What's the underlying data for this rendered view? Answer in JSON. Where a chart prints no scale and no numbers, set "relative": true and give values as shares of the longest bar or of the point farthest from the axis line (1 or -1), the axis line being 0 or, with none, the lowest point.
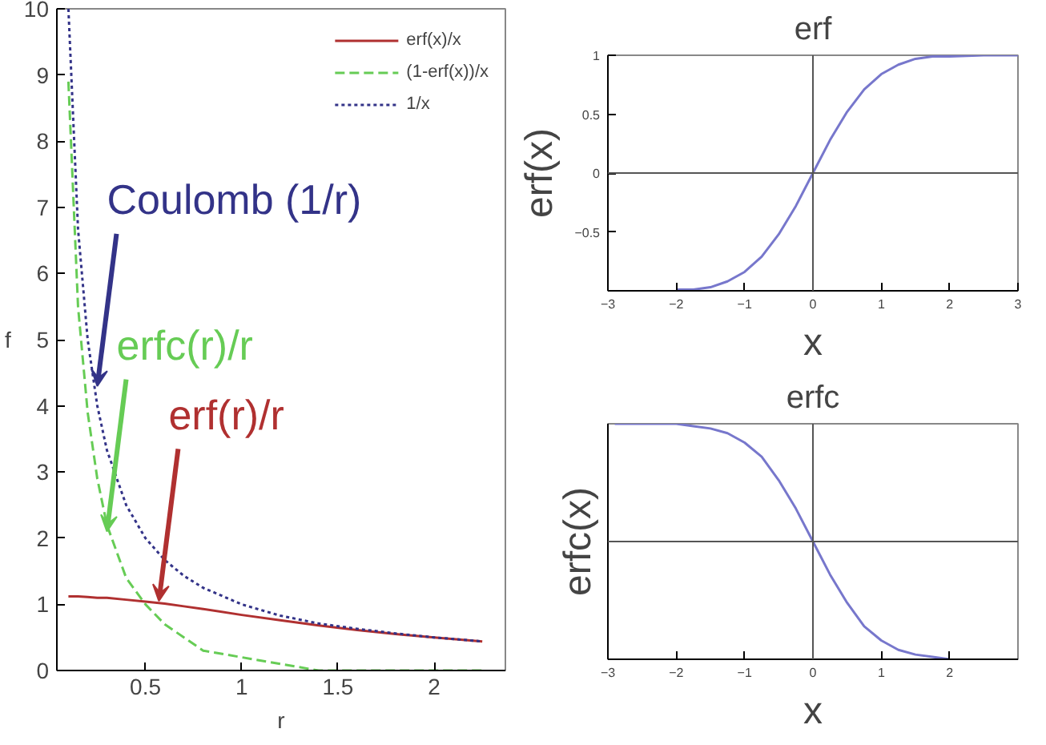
{
  "chart_data": [
    {
      "type": "line",
      "xlabel": "r",
      "ylabel": "f",
      "xlim": [
        0.04,
        2.37
      ],
      "ylim": [
        0,
        10
      ],
      "xticks": [
        0.5,
        1,
        1.5,
        2
      ],
      "yticks": [
        0,
        1,
        2,
        3,
        4,
        5,
        6,
        7,
        8,
        9,
        10
      ],
      "grid": false,
      "legend": "top right",
      "x": [
        0.1,
        0.15,
        0.2,
        0.25,
        0.3,
        0.4,
        0.5,
        0.6,
        0.7,
        0.8,
        1.0,
        1.2,
        1.4,
        1.6,
        1.8,
        2.0,
        2.25
      ],
      "series": [
        {
          "name": "erf(x)/x",
          "color": "#b03030",
          "line_style": "solid",
          "values": [
            1.12,
            1.12,
            1.11,
            1.1,
            1.1,
            1.07,
            1.04,
            1.01,
            0.97,
            0.93,
            0.84,
            0.76,
            0.68,
            0.61,
            0.55,
            0.5,
            0.44
          ]
        },
        {
          "name": "(1-erf(x))/x",
          "color": "#66cc55",
          "line_style": "dashed",
          "values": [
            8.9,
            5.5,
            3.9,
            2.9,
            2.2,
            1.4,
            1.0,
            0.7,
            0.5,
            0.3,
            0.2,
            0.1,
            0.0,
            0.0,
            0.0,
            0.0,
            0.0
          ]
        },
        {
          "name": "1/x",
          "color": "#333388",
          "line_style": "dotted",
          "values": [
            10,
            6.67,
            5,
            4,
            3.33,
            2.5,
            2,
            1.67,
            1.43,
            1.25,
            1,
            0.83,
            0.71,
            0.63,
            0.56,
            0.5,
            0.44
          ]
        }
      ],
      "annotations": [
        {
          "text": "Coulomb (1/r)",
          "x": 0.25,
          "y": 4.3
        },
        {
          "text": "erfc(r)/r",
          "x": 0.3,
          "y": 2.1
        },
        {
          "text": "erf(r)/r",
          "x": 0.57,
          "y": 1.05
        }
      ]
    },
    {
      "type": "line",
      "title": "erf",
      "xlabel": "x",
      "ylabel": "erf(x)",
      "xlim": [
        -3,
        3
      ],
      "ylim": [
        -1,
        1
      ],
      "xticks": [
        -3,
        -2,
        -1,
        0,
        1,
        2,
        3
      ],
      "yticks": [
        -0.5,
        0,
        0.5,
        1
      ],
      "grid": false,
      "x": [
        -2,
        -1.75,
        -1.5,
        -1.25,
        -1,
        -0.75,
        -0.5,
        -0.25,
        0,
        0.25,
        0.5,
        0.75,
        1,
        1.25,
        1.5,
        1.75,
        2,
        2.5,
        3
      ],
      "series": [
        {
          "color": "#7777cc",
          "line_style": "solid",
          "values": [
            -0.99,
            -0.99,
            -0.97,
            -0.92,
            -0.84,
            -0.71,
            -0.52,
            -0.28,
            0,
            0.28,
            0.52,
            0.71,
            0.84,
            0.92,
            0.97,
            0.99,
            0.99,
            1,
            1
          ]
        }
      ],
      "ref_lines": [
        {
          "axis": "x",
          "value": 0,
          "color": "#555555"
        },
        {
          "axis": "y",
          "value": 0,
          "color": "#555555"
        }
      ]
    },
    {
      "type": "line",
      "title": "erfc",
      "xlabel": "x",
      "ylabel": "erfc(x)",
      "xlim": [
        -3,
        3
      ],
      "xticks": [
        -3,
        -2,
        -1,
        0,
        1,
        2
      ],
      "relative": true,
      "tick_labels": "x",
      "grid": false,
      "x": [
        -2.9,
        -2.5,
        -2,
        -1.75,
        -1.5,
        -1.25,
        -1,
        -0.75,
        -0.5,
        -0.25,
        0,
        0.25,
        0.5,
        0.75,
        1,
        1.25,
        1.5,
        1.75,
        2
      ],
      "series": [
        {
          "color": "#7777cc",
          "line_style": "solid",
          "values": [
            1,
            1,
            1,
            0.99,
            0.98,
            0.96,
            0.92,
            0.86,
            0.76,
            0.64,
            0.5,
            0.36,
            0.24,
            0.14,
            0.08,
            0.04,
            0.02,
            0.01,
            0
          ]
        }
      ],
      "ref_lines": [
        {
          "axis": "x",
          "value": 0,
          "color": "#555555"
        },
        {
          "axis": "y",
          "value": 0.5,
          "color": "#555555"
        }
      ]
    }
  ]
}
